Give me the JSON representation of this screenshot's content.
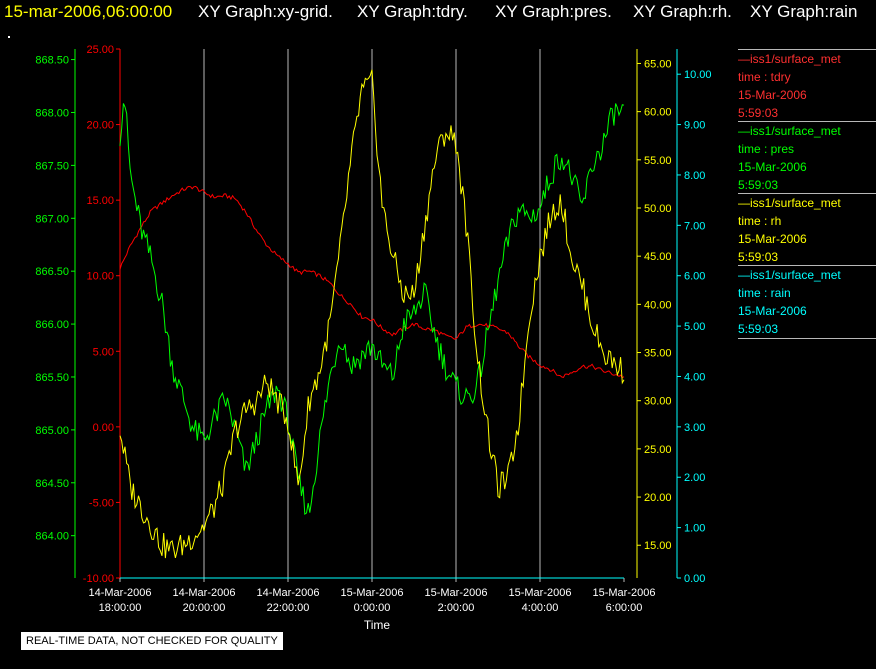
{
  "header": {
    "time": "15-mar-2006,06:00:00",
    "graphs": [
      "XY Graph:xy-grid.",
      "XY Graph:tdry.",
      "XY Graph:pres.",
      "XY Graph:rh.",
      "XY Graph:rain"
    ]
  },
  "footer_note": "REAL-TIME DATA, NOT CHECKED FOR QUALITY",
  "colors": {
    "tdry": "#ff0000",
    "pres": "#00ff00",
    "rh": "#ffff00",
    "rain": "#00ffff",
    "grid": "#b8b8b8"
  },
  "legend": [
    {
      "title": "—iss1/surface_met",
      "field": "time : tdry",
      "date": "15-Mar-2006",
      "time": "5:59:03",
      "color": "#ff3030"
    },
    {
      "title": "—iss1/surface_met",
      "field": "time : pres",
      "date": "15-Mar-2006",
      "time": "5:59:03",
      "color": "#00ff00"
    },
    {
      "title": "—iss1/surface_met",
      "field": "time : rh",
      "date": "15-Mar-2006",
      "time": "5:59:03",
      "color": "#ffff00"
    },
    {
      "title": "—iss1/surface_met",
      "field": "time : rain",
      "date": "15-Mar-2006",
      "time": "5:59:03",
      "color": "#00ffff"
    }
  ],
  "chart_data": {
    "type": "line",
    "title": "",
    "xlabel": "Time",
    "x_ticks": [
      [
        "14-Mar-2006",
        "18:00:00"
      ],
      [
        "14-Mar-2006",
        "20:00:00"
      ],
      [
        "14-Mar-2006",
        "22:00:00"
      ],
      [
        "15-Mar-2006",
        "0:00:00"
      ],
      [
        "15-Mar-2006",
        "2:00:00"
      ],
      [
        "15-Mar-2006",
        "4:00:00"
      ],
      [
        "15-Mar-2006",
        "6:00:00"
      ]
    ],
    "x_unit": "hours since 14-Mar-2006 18:00:00",
    "xlim": [
      0,
      12
    ],
    "grid": "vertical",
    "axes": {
      "pres": {
        "ylim": [
          863.6,
          868.6
        ],
        "ticks": [
          "864.00",
          "864.50",
          "865.00",
          "865.50",
          "866.00",
          "866.50",
          "867.00",
          "867.50",
          "868.00",
          "868.50"
        ],
        "tick_values": [
          864.0,
          864.5,
          865.0,
          865.5,
          866.0,
          866.5,
          867.0,
          867.5,
          868.0,
          868.5
        ]
      },
      "tdry": {
        "ylim": [
          -10,
          25
        ],
        "ticks": [
          "-10.00",
          "-5.00",
          "0.00",
          "5.00",
          "10.00",
          "15.00",
          "20.00",
          "25.00"
        ],
        "tick_values": [
          -10,
          -5,
          0,
          5,
          10,
          15,
          20,
          25
        ]
      },
      "rh": {
        "ylim": [
          11.6,
          66.5
        ],
        "ticks": [
          "15.00",
          "20.00",
          "25.00",
          "30.00",
          "35.00",
          "40.00",
          "45.00",
          "50.00",
          "55.00",
          "60.00",
          "65.00"
        ],
        "tick_values": [
          15,
          20,
          25,
          30,
          35,
          40,
          45,
          50,
          55,
          60,
          65
        ]
      },
      "rain": {
        "ylim": [
          0,
          10.5
        ],
        "ticks": [
          "0.00",
          "1.00",
          "2.00",
          "3.00",
          "4.00",
          "5.00",
          "6.00",
          "7.00",
          "8.00",
          "9.00",
          "10.00"
        ],
        "tick_values": [
          0,
          1,
          2,
          3,
          4,
          5,
          6,
          7,
          8,
          9,
          10
        ]
      }
    },
    "series": [
      {
        "name": "tdry",
        "axis": "tdry",
        "color": "#ff0000",
        "x": [
          0,
          0.25,
          0.5,
          0.75,
          1,
          1.25,
          1.5,
          1.75,
          2,
          2.25,
          2.5,
          2.75,
          3,
          3.25,
          3.5,
          3.75,
          4,
          4.25,
          4.5,
          4.75,
          5,
          5.25,
          5.5,
          5.75,
          6,
          6.25,
          6.5,
          6.75,
          7,
          7.25,
          7.5,
          7.75,
          8,
          8.25,
          8.5,
          8.75,
          9,
          9.25,
          9.5,
          9.75,
          10,
          10.25,
          10.5,
          10.75,
          11,
          11.25,
          11.5,
          11.75,
          12
        ],
        "y": [
          10.5,
          12,
          13.2,
          14.3,
          14.8,
          15.3,
          15.7,
          15.9,
          15.5,
          15.2,
          15.3,
          15.1,
          14.2,
          13,
          12,
          11.3,
          10.8,
          10.2,
          10.3,
          10,
          9.5,
          8.7,
          8.1,
          7.3,
          7.1,
          6.5,
          6.1,
          6.5,
          6.8,
          6.5,
          6.4,
          6,
          5.8,
          6.6,
          6.8,
          6.7,
          6.5,
          6.2,
          5.3,
          4.6,
          4.1,
          3.8,
          3.3,
          3.6,
          4,
          4,
          3.7,
          3.5,
          3.3
        ]
      },
      {
        "name": "pres",
        "axis": "pres",
        "color": "#00ff00",
        "x": [
          0,
          0.1,
          0.25,
          0.5,
          0.75,
          1,
          1.25,
          1.5,
          1.75,
          2,
          2.25,
          2.5,
          2.75,
          3,
          3.25,
          3.5,
          3.75,
          4,
          4.25,
          4.5,
          4.75,
          5,
          5.25,
          5.5,
          5.75,
          6,
          6.25,
          6.5,
          6.75,
          7,
          7.25,
          7.5,
          7.75,
          8,
          8.25,
          8.5,
          8.75,
          9,
          9.25,
          9.5,
          9.75,
          10,
          10.25,
          10.5,
          10.75,
          11,
          11.25,
          11.5,
          11.75,
          12
        ],
        "y": [
          867.8,
          868.2,
          867.4,
          866.9,
          866.6,
          866.2,
          865.6,
          865.3,
          865.0,
          864.9,
          865.1,
          865.3,
          865.0,
          864.6,
          864.9,
          865.2,
          865.4,
          865.1,
          864.5,
          864.2,
          864.9,
          865.5,
          865.9,
          865.6,
          865.7,
          865.8,
          865.6,
          865.5,
          866.0,
          866.1,
          866.3,
          865.9,
          865.6,
          865.4,
          865.3,
          865.4,
          865.9,
          866.4,
          866.8,
          867.1,
          867.0,
          867.1,
          867.4,
          867.6,
          867.4,
          867.1,
          867.5,
          867.7,
          868.0,
          868.0
        ]
      },
      {
        "name": "rh",
        "axis": "rh",
        "color": "#ffff00",
        "x": [
          0,
          0.25,
          0.5,
          0.75,
          1,
          1.25,
          1.5,
          1.75,
          2,
          2.25,
          2.5,
          2.75,
          3,
          3.25,
          3.5,
          3.75,
          4,
          4.25,
          4.5,
          4.75,
          5,
          5.25,
          5.5,
          5.75,
          6,
          6.25,
          6.5,
          6.75,
          7,
          7.25,
          7.5,
          7.75,
          8,
          8.25,
          8.5,
          8.75,
          9,
          9.25,
          9.5,
          9.75,
          10,
          10.25,
          10.5,
          10.75,
          11,
          11.25,
          11.5,
          11.75,
          12
        ],
        "y": [
          27,
          21,
          19,
          17,
          15,
          14.5,
          15,
          16,
          17,
          19,
          22,
          27,
          29,
          30,
          32,
          30,
          28,
          21,
          30,
          33,
          38,
          46,
          55,
          62,
          63,
          50,
          45,
          41,
          41,
          48,
          55,
          58,
          57,
          48,
          35,
          27,
          21,
          22,
          28,
          39,
          45,
          49,
          51,
          45,
          42,
          38,
          35,
          34,
          33
        ]
      },
      {
        "name": "rain",
        "axis": "rain",
        "color": "#00ffff",
        "x": [
          0,
          12
        ],
        "y": [
          0,
          0
        ]
      }
    ]
  }
}
